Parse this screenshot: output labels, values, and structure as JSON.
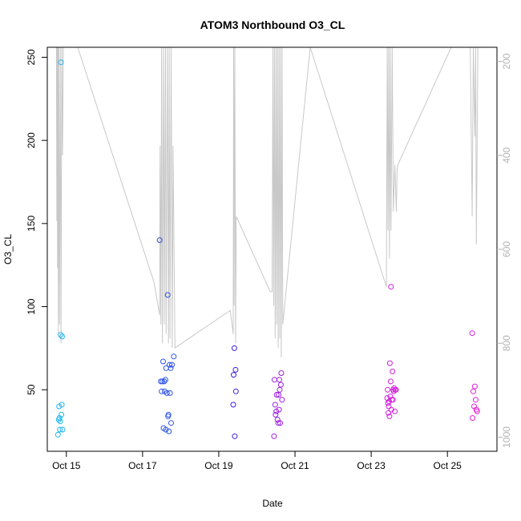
{
  "chart_data": {
    "type": "scatter",
    "title": "ATOM3 Northbound O3_CL",
    "xlabel": "Date",
    "ylabel": "O3_CL",
    "xlim": [
      14.5,
      26.3
    ],
    "ylim": [
      13,
      256
    ],
    "x_ticks": [
      {
        "value": 15,
        "label": "Oct 15"
      },
      {
        "value": 17,
        "label": "Oct 17"
      },
      {
        "value": 19,
        "label": "Oct 19"
      },
      {
        "value": 21,
        "label": "Oct 21"
      },
      {
        "value": 23,
        "label": "Oct 23"
      },
      {
        "value": 25,
        "label": "Oct 25"
      }
    ],
    "y_ticks": [
      50,
      100,
      150,
      200,
      250
    ],
    "y2_ticks": [
      200,
      400,
      600,
      800,
      1000
    ],
    "y2lim": [
      1030,
      170
    ],
    "y2_reversed": true,
    "grid": false,
    "points": [
      {
        "x": 14.78,
        "y": 23,
        "color": "#1eb4f0"
      },
      {
        "x": 14.8,
        "y": 32,
        "color": "#1eb4f0"
      },
      {
        "x": 14.81,
        "y": 40,
        "color": "#1eb4f0"
      },
      {
        "x": 14.82,
        "y": 33,
        "color": "#1eb4f0"
      },
      {
        "x": 14.83,
        "y": 26,
        "color": "#1eb4f0"
      },
      {
        "x": 14.84,
        "y": 31,
        "color": "#1eb4f0"
      },
      {
        "x": 14.85,
        "y": 83,
        "color": "#1eb4f0"
      },
      {
        "x": 14.87,
        "y": 35,
        "color": "#1eb4f0"
      },
      {
        "x": 14.88,
        "y": 41,
        "color": "#1eb4f0"
      },
      {
        "x": 14.89,
        "y": 82,
        "color": "#1eb4f0"
      },
      {
        "x": 14.9,
        "y": 26,
        "color": "#1eb4f0"
      },
      {
        "x": 14.86,
        "y": 247,
        "color": "#1eb4f0"
      },
      {
        "x": 17.45,
        "y": 140,
        "color": "#2c52e6"
      },
      {
        "x": 17.48,
        "y": 55,
        "color": "#2c52e6"
      },
      {
        "x": 17.5,
        "y": 49,
        "color": "#2c52e6"
      },
      {
        "x": 17.52,
        "y": 55,
        "color": "#2c52e6"
      },
      {
        "x": 17.54,
        "y": 67,
        "color": "#2c52e6"
      },
      {
        "x": 17.55,
        "y": 27,
        "color": "#2c52e6"
      },
      {
        "x": 17.57,
        "y": 55,
        "color": "#2c52e6"
      },
      {
        "x": 17.58,
        "y": 49,
        "color": "#2c52e6"
      },
      {
        "x": 17.6,
        "y": 56,
        "color": "#2c52e6"
      },
      {
        "x": 17.61,
        "y": 26,
        "color": "#2c52e6"
      },
      {
        "x": 17.62,
        "y": 63,
        "color": "#2c52e6"
      },
      {
        "x": 17.64,
        "y": 48,
        "color": "#2c52e6"
      },
      {
        "x": 17.66,
        "y": 107,
        "color": "#2c52e6"
      },
      {
        "x": 17.67,
        "y": 34,
        "color": "#2c52e6"
      },
      {
        "x": 17.68,
        "y": 35,
        "color": "#2c52e6"
      },
      {
        "x": 17.69,
        "y": 25,
        "color": "#2c52e6"
      },
      {
        "x": 17.71,
        "y": 65,
        "color": "#2c52e6"
      },
      {
        "x": 17.72,
        "y": 48,
        "color": "#2c52e6"
      },
      {
        "x": 17.74,
        "y": 63,
        "color": "#2c52e6"
      },
      {
        "x": 17.75,
        "y": 30,
        "color": "#2c52e6"
      },
      {
        "x": 17.77,
        "y": 65,
        "color": "#2c52e6"
      },
      {
        "x": 17.82,
        "y": 70,
        "color": "#2c52e6"
      },
      {
        "x": 19.38,
        "y": 41,
        "color": "#3d1ee0"
      },
      {
        "x": 19.39,
        "y": 59,
        "color": "#3d1ee0"
      },
      {
        "x": 19.41,
        "y": 75,
        "color": "#3d1ee0"
      },
      {
        "x": 19.42,
        "y": 22,
        "color": "#3d1ee0"
      },
      {
        "x": 19.44,
        "y": 62,
        "color": "#3d1ee0"
      },
      {
        "x": 19.45,
        "y": 49,
        "color": "#3d1ee0"
      },
      {
        "x": 20.45,
        "y": 22,
        "color": "#9d1ee0"
      },
      {
        "x": 20.46,
        "y": 56,
        "color": "#9d1ee0"
      },
      {
        "x": 20.48,
        "y": 41,
        "color": "#9d1ee0"
      },
      {
        "x": 20.49,
        "y": 35,
        "color": "#9d1ee0"
      },
      {
        "x": 20.51,
        "y": 37,
        "color": "#9d1ee0"
      },
      {
        "x": 20.52,
        "y": 47,
        "color": "#9d1ee0"
      },
      {
        "x": 20.54,
        "y": 32,
        "color": "#9d1ee0"
      },
      {
        "x": 20.56,
        "y": 30,
        "color": "#9d1ee0"
      },
      {
        "x": 20.57,
        "y": 47,
        "color": "#9d1ee0"
      },
      {
        "x": 20.58,
        "y": 38,
        "color": "#9d1ee0"
      },
      {
        "x": 20.59,
        "y": 56,
        "color": "#9d1ee0"
      },
      {
        "x": 20.6,
        "y": 50,
        "color": "#9d1ee0"
      },
      {
        "x": 20.61,
        "y": 30,
        "color": "#9d1ee0"
      },
      {
        "x": 20.63,
        "y": 53,
        "color": "#9d1ee0"
      },
      {
        "x": 20.64,
        "y": 60,
        "color": "#9d1ee0"
      },
      {
        "x": 20.66,
        "y": 44,
        "color": "#9d1ee0"
      },
      {
        "x": 23.42,
        "y": 45,
        "color": "#d21edc"
      },
      {
        "x": 23.43,
        "y": 50,
        "color": "#d21edc"
      },
      {
        "x": 23.44,
        "y": 42,
        "color": "#d21edc"
      },
      {
        "x": 23.45,
        "y": 36,
        "color": "#d21edc"
      },
      {
        "x": 23.46,
        "y": 40,
        "color": "#d21edc"
      },
      {
        "x": 23.47,
        "y": 43,
        "color": "#d21edc"
      },
      {
        "x": 23.48,
        "y": 34,
        "color": "#d21edc"
      },
      {
        "x": 23.49,
        "y": 66,
        "color": "#d21edc"
      },
      {
        "x": 23.5,
        "y": 46,
        "color": "#d21edc"
      },
      {
        "x": 23.51,
        "y": 55,
        "color": "#d21edc"
      },
      {
        "x": 23.52,
        "y": 112,
        "color": "#d21edc"
      },
      {
        "x": 23.53,
        "y": 38,
        "color": "#d21edc"
      },
      {
        "x": 23.54,
        "y": 44,
        "color": "#d21edc"
      },
      {
        "x": 23.56,
        "y": 61,
        "color": "#d21edc"
      },
      {
        "x": 23.57,
        "y": 44,
        "color": "#d21edc"
      },
      {
        "x": 23.58,
        "y": 50,
        "color": "#d21edc"
      },
      {
        "x": 23.59,
        "y": 49,
        "color": "#d21edc"
      },
      {
        "x": 23.6,
        "y": 51,
        "color": "#d21edc"
      },
      {
        "x": 23.62,
        "y": 37,
        "color": "#d21edc"
      },
      {
        "x": 23.63,
        "y": 50,
        "color": "#d21edc"
      },
      {
        "x": 23.65,
        "y": 50,
        "color": "#d21edc"
      },
      {
        "x": 25.65,
        "y": 84,
        "color": "#e21edc"
      },
      {
        "x": 25.66,
        "y": 33,
        "color": "#e21edc"
      },
      {
        "x": 25.68,
        "y": 49,
        "color": "#e21edc"
      },
      {
        "x": 25.7,
        "y": 40,
        "color": "#e21edc"
      },
      {
        "x": 25.72,
        "y": 52,
        "color": "#e21edc"
      },
      {
        "x": 25.74,
        "y": 44,
        "color": "#e21edc"
      },
      {
        "x": 25.76,
        "y": 38,
        "color": "#e21edc"
      },
      {
        "x": 25.78,
        "y": 37,
        "color": "#e21edc"
      }
    ],
    "pressure_trace": {
      "color": "#c8c8c8",
      "points": [
        [
          14.74,
          170
        ],
        [
          14.75,
          540
        ],
        [
          14.76,
          170
        ],
        [
          14.77,
          640
        ],
        [
          14.78,
          170
        ],
        [
          14.79,
          780
        ],
        [
          14.8,
          170
        ],
        [
          14.82,
          760
        ],
        [
          14.84,
          170
        ],
        [
          14.86,
          800
        ],
        [
          14.88,
          170
        ],
        [
          14.9,
          400
        ],
        [
          14.92,
          170
        ],
        [
          15.3,
          170
        ],
        [
          17.3,
          670
        ],
        [
          17.45,
          740
        ],
        [
          17.46,
          380
        ],
        [
          17.48,
          760
        ],
        [
          17.5,
          170
        ],
        [
          17.52,
          800
        ],
        [
          17.55,
          170
        ],
        [
          17.57,
          760
        ],
        [
          17.6,
          170
        ],
        [
          17.62,
          780
        ],
        [
          17.65,
          170
        ],
        [
          17.68,
          800
        ],
        [
          17.7,
          170
        ],
        [
          17.72,
          790
        ],
        [
          17.75,
          170
        ],
        [
          17.78,
          810
        ],
        [
          17.8,
          380
        ],
        [
          17.85,
          810
        ],
        [
          19.3,
          730
        ],
        [
          19.38,
          780
        ],
        [
          19.39,
          170
        ],
        [
          19.4,
          720
        ],
        [
          19.42,
          170
        ],
        [
          19.44,
          800
        ],
        [
          19.46,
          530
        ],
        [
          20.35,
          690
        ],
        [
          20.4,
          690
        ],
        [
          20.42,
          170
        ],
        [
          20.44,
          720
        ],
        [
          20.46,
          170
        ],
        [
          20.48,
          790
        ],
        [
          20.5,
          170
        ],
        [
          20.52,
          760
        ],
        [
          20.54,
          170
        ],
        [
          20.56,
          810
        ],
        [
          20.58,
          170
        ],
        [
          20.6,
          790
        ],
        [
          20.62,
          170
        ],
        [
          20.64,
          830
        ],
        [
          20.66,
          170
        ],
        [
          20.68,
          760
        ],
        [
          21.4,
          170
        ],
        [
          23.4,
          680
        ],
        [
          23.42,
          170
        ],
        [
          23.44,
          560
        ],
        [
          23.46,
          170
        ],
        [
          23.48,
          620
        ],
        [
          23.5,
          170
        ],
        [
          23.52,
          560
        ],
        [
          23.55,
          170
        ],
        [
          23.58,
          520
        ],
        [
          23.62,
          420
        ],
        [
          23.66,
          520
        ],
        [
          23.68,
          430
        ],
        [
          23.7,
          420
        ],
        [
          25.1,
          170
        ],
        [
          25.6,
          170
        ],
        [
          25.65,
          530
        ],
        [
          25.68,
          170
        ],
        [
          25.72,
          360
        ],
        [
          25.74,
          170
        ],
        [
          25.76,
          590
        ],
        [
          25.8,
          170
        ]
      ]
    }
  }
}
